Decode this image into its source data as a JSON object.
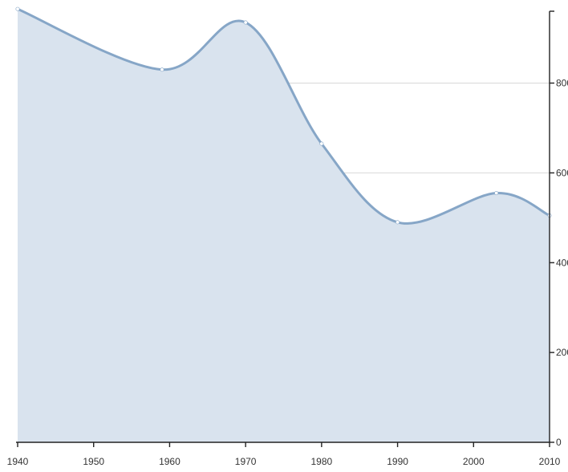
{
  "chart_data": {
    "type": "area",
    "title": "",
    "xlabel": "",
    "ylabel": "",
    "x": [
      1940,
      1959,
      1970,
      1980,
      1990,
      2003,
      2010
    ],
    "series": [
      {
        "values": [
          965,
          830,
          935,
          665,
          490,
          555,
          505
        ]
      }
    ],
    "xlim": [
      1940,
      2010
    ],
    "ylim": [
      0,
      960
    ],
    "x_ticks": [
      1940,
      1950,
      1960,
      1970,
      1980,
      1990,
      2000,
      2010
    ],
    "x_tick_labels": [
      "1940",
      "1950",
      "1960",
      "1970",
      "1980",
      "1990",
      "2000",
      "2010"
    ],
    "y_ticks": [
      0,
      200,
      400,
      600,
      800
    ],
    "y_tick_labels": [
      "0",
      "200",
      "400",
      "600",
      "800"
    ],
    "y_axis_side": "right",
    "grid": "horizontal",
    "legend": "none",
    "colors": {
      "line": "#86a6c7",
      "fill": "#d9e3ee",
      "point": "#ffffff",
      "grid": "#d8d8d8",
      "axis": "#222222"
    }
  }
}
